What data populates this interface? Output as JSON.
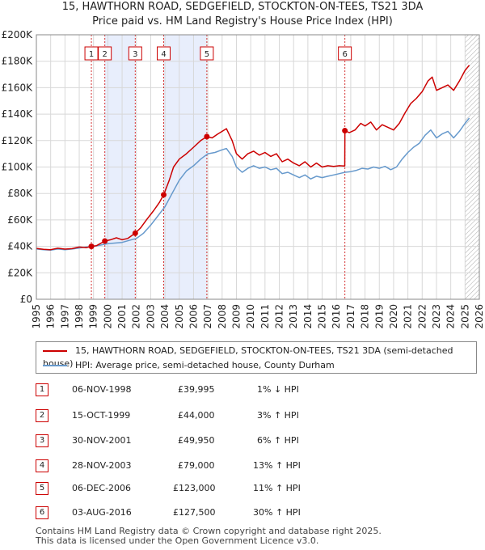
{
  "header": {
    "title_line1": "15, HAWTHORN ROAD, SEDGEFIELD, STOCKTON-ON-TEES, TS21 3DA",
    "title_line2": "Price paid vs. HM Land Registry's House Price Index (HPI)"
  },
  "colors": {
    "property": "#cc0000",
    "hpi": "#6699cc",
    "shade": "#e8eefc"
  },
  "chart_data": {
    "type": "line",
    "xlim": [
      1995,
      2026
    ],
    "ylim": [
      0,
      200000
    ],
    "x_ticks": [
      "1995",
      "1996",
      "1997",
      "1998",
      "1999",
      "2000",
      "2001",
      "2002",
      "2003",
      "2004",
      "2005",
      "2006",
      "2007",
      "2008",
      "2009",
      "2010",
      "2011",
      "2012",
      "2013",
      "2014",
      "2015",
      "2016",
      "2017",
      "2018",
      "2019",
      "2020",
      "2021",
      "2022",
      "2023",
      "2024",
      "2025",
      "2026"
    ],
    "y_ticks": [
      "£0",
      "£20K",
      "£40K",
      "£60K",
      "£80K",
      "£100K",
      "£120K",
      "£140K",
      "£160K",
      "£180K",
      "£200K"
    ],
    "y_tick_values": [
      0,
      20000,
      40000,
      60000,
      80000,
      100000,
      120000,
      140000,
      160000,
      180000,
      200000
    ],
    "shaded_ranges": [
      [
        1999.79,
        2001.92
      ],
      [
        2003.91,
        2006.93
      ]
    ],
    "future_hatch_from": 2025.0,
    "series": [
      {
        "name": "15, HAWTHORN ROAD, SEDGEFIELD, STOCKTON-ON-TEES, TS21 3DA (semi-detached house)",
        "points": [
          [
            1995.0,
            38500
          ],
          [
            1995.5,
            37800
          ],
          [
            1996.0,
            37500
          ],
          [
            1996.5,
            38600
          ],
          [
            1997.0,
            37900
          ],
          [
            1997.5,
            38300
          ],
          [
            1998.0,
            39500
          ],
          [
            1998.5,
            39000
          ],
          [
            1998.85,
            39995
          ],
          [
            1999.2,
            40500
          ],
          [
            1999.79,
            44000
          ],
          [
            2000.2,
            45000
          ],
          [
            2000.6,
            46500
          ],
          [
            2001.0,
            45000
          ],
          [
            2001.4,
            46000
          ],
          [
            2001.92,
            49950
          ],
          [
            2002.3,
            54000
          ],
          [
            2002.7,
            60000
          ],
          [
            2003.2,
            67000
          ],
          [
            2003.6,
            73000
          ],
          [
            2003.91,
            79000
          ],
          [
            2004.3,
            90000
          ],
          [
            2004.6,
            100000
          ],
          [
            2005.0,
            106000
          ],
          [
            2005.5,
            110000
          ],
          [
            2006.0,
            115000
          ],
          [
            2006.5,
            120000
          ],
          [
            2006.93,
            123000
          ],
          [
            2007.3,
            122000
          ],
          [
            2007.7,
            125000
          ],
          [
            2008.0,
            127000
          ],
          [
            2008.3,
            129000
          ],
          [
            2008.7,
            120000
          ],
          [
            2009.0,
            110000
          ],
          [
            2009.4,
            106000
          ],
          [
            2009.8,
            110000
          ],
          [
            2010.2,
            112000
          ],
          [
            2010.6,
            109000
          ],
          [
            2011.0,
            111000
          ],
          [
            2011.4,
            108000
          ],
          [
            2011.8,
            110000
          ],
          [
            2012.2,
            104000
          ],
          [
            2012.6,
            106000
          ],
          [
            2013.0,
            103000
          ],
          [
            2013.4,
            101000
          ],
          [
            2013.8,
            104000
          ],
          [
            2014.2,
            100000
          ],
          [
            2014.6,
            103000
          ],
          [
            2015.0,
            100000
          ],
          [
            2015.4,
            101000
          ],
          [
            2015.8,
            100500
          ],
          [
            2016.2,
            101000
          ],
          [
            2016.58,
            100800
          ],
          [
            2016.59,
            127500
          ],
          [
            2016.9,
            126000
          ],
          [
            2017.3,
            128000
          ],
          [
            2017.7,
            133000
          ],
          [
            2018.0,
            131000
          ],
          [
            2018.4,
            134000
          ],
          [
            2018.8,
            128000
          ],
          [
            2019.2,
            132000
          ],
          [
            2019.6,
            130000
          ],
          [
            2020.0,
            128000
          ],
          [
            2020.4,
            133000
          ],
          [
            2020.8,
            141000
          ],
          [
            2021.2,
            148000
          ],
          [
            2021.6,
            152000
          ],
          [
            2022.0,
            157000
          ],
          [
            2022.4,
            165000
          ],
          [
            2022.7,
            168000
          ],
          [
            2023.0,
            158000
          ],
          [
            2023.4,
            160000
          ],
          [
            2023.8,
            162000
          ],
          [
            2024.2,
            158000
          ],
          [
            2024.6,
            165000
          ],
          [
            2025.0,
            173000
          ],
          [
            2025.3,
            177000
          ]
        ]
      },
      {
        "name": "HPI: Average price, semi-detached house, County Durham",
        "points": [
          [
            1995.0,
            38000
          ],
          [
            1995.5,
            37500
          ],
          [
            1996.0,
            37200
          ],
          [
            1996.5,
            38000
          ],
          [
            1997.0,
            37500
          ],
          [
            1997.5,
            38000
          ],
          [
            1998.0,
            38800
          ],
          [
            1998.5,
            39500
          ],
          [
            1999.0,
            40000
          ],
          [
            1999.5,
            41000
          ],
          [
            2000.0,
            42000
          ],
          [
            2000.5,
            42500
          ],
          [
            2001.0,
            43000
          ],
          [
            2001.5,
            44500
          ],
          [
            2002.0,
            46000
          ],
          [
            2002.5,
            50000
          ],
          [
            2003.0,
            56000
          ],
          [
            2003.5,
            63000
          ],
          [
            2004.0,
            70000
          ],
          [
            2004.5,
            80000
          ],
          [
            2005.0,
            90000
          ],
          [
            2005.5,
            97000
          ],
          [
            2006.0,
            101000
          ],
          [
            2006.5,
            106000
          ],
          [
            2007.0,
            110000
          ],
          [
            2007.5,
            111000
          ],
          [
            2008.0,
            113000
          ],
          [
            2008.3,
            114000
          ],
          [
            2008.7,
            108000
          ],
          [
            2009.0,
            100000
          ],
          [
            2009.4,
            96000
          ],
          [
            2009.8,
            99000
          ],
          [
            2010.2,
            101000
          ],
          [
            2010.6,
            99000
          ],
          [
            2011.0,
            100000
          ],
          [
            2011.4,
            98000
          ],
          [
            2011.8,
            99000
          ],
          [
            2012.2,
            95000
          ],
          [
            2012.6,
            96000
          ],
          [
            2013.0,
            94000
          ],
          [
            2013.4,
            92000
          ],
          [
            2013.8,
            94000
          ],
          [
            2014.2,
            91000
          ],
          [
            2014.6,
            93000
          ],
          [
            2015.0,
            92000
          ],
          [
            2015.4,
            93000
          ],
          [
            2015.8,
            94000
          ],
          [
            2016.2,
            95000
          ],
          [
            2016.6,
            96000
          ],
          [
            2017.0,
            96500
          ],
          [
            2017.4,
            97500
          ],
          [
            2017.8,
            99000
          ],
          [
            2018.2,
            98500
          ],
          [
            2018.6,
            100000
          ],
          [
            2019.0,
            99000
          ],
          [
            2019.4,
            100500
          ],
          [
            2019.8,
            98000
          ],
          [
            2020.2,
            100000
          ],
          [
            2020.6,
            106000
          ],
          [
            2021.0,
            111000
          ],
          [
            2021.4,
            115000
          ],
          [
            2021.8,
            118000
          ],
          [
            2022.2,
            124000
          ],
          [
            2022.6,
            128000
          ],
          [
            2023.0,
            122000
          ],
          [
            2023.4,
            125000
          ],
          [
            2023.8,
            127000
          ],
          [
            2024.2,
            122000
          ],
          [
            2024.6,
            127000
          ],
          [
            2025.0,
            133000
          ],
          [
            2025.3,
            137000
          ]
        ]
      }
    ],
    "sales": [
      {
        "id": "1",
        "x": 1998.85,
        "price": 39995
      },
      {
        "id": "2",
        "x": 1999.79,
        "price": 44000
      },
      {
        "id": "3",
        "x": 2001.92,
        "price": 49950
      },
      {
        "id": "4",
        "x": 2003.91,
        "price": 79000
      },
      {
        "id": "5",
        "x": 2006.93,
        "price": 123000
      },
      {
        "id": "6",
        "x": 2016.59,
        "price": 127500
      }
    ]
  },
  "legend": {
    "property_label": "15, HAWTHORN ROAD, SEDGEFIELD, STOCKTON-ON-TEES, TS21 3DA (semi-detached house)",
    "hpi_label": "HPI: Average price, semi-detached house, County Durham"
  },
  "sales_table": [
    {
      "id": "1",
      "date": "06-NOV-1998",
      "price": "£39,995",
      "change": "1% ↓ HPI"
    },
    {
      "id": "2",
      "date": "15-OCT-1999",
      "price": "£44,000",
      "change": "3% ↑ HPI"
    },
    {
      "id": "3",
      "date": "30-NOV-2001",
      "price": "£49,950",
      "change": "6% ↑ HPI"
    },
    {
      "id": "4",
      "date": "28-NOV-2003",
      "price": "£79,000",
      "change": "13% ↑ HPI"
    },
    {
      "id": "5",
      "date": "06-DEC-2006",
      "price": "£123,000",
      "change": "11% ↑ HPI"
    },
    {
      "id": "6",
      "date": "03-AUG-2016",
      "price": "£127,500",
      "change": "30% ↑ HPI"
    }
  ],
  "footer": {
    "line1": "Contains HM Land Registry data © Crown copyright and database right 2025.",
    "line2": "This data is licensed under the Open Government Licence v3.0."
  }
}
